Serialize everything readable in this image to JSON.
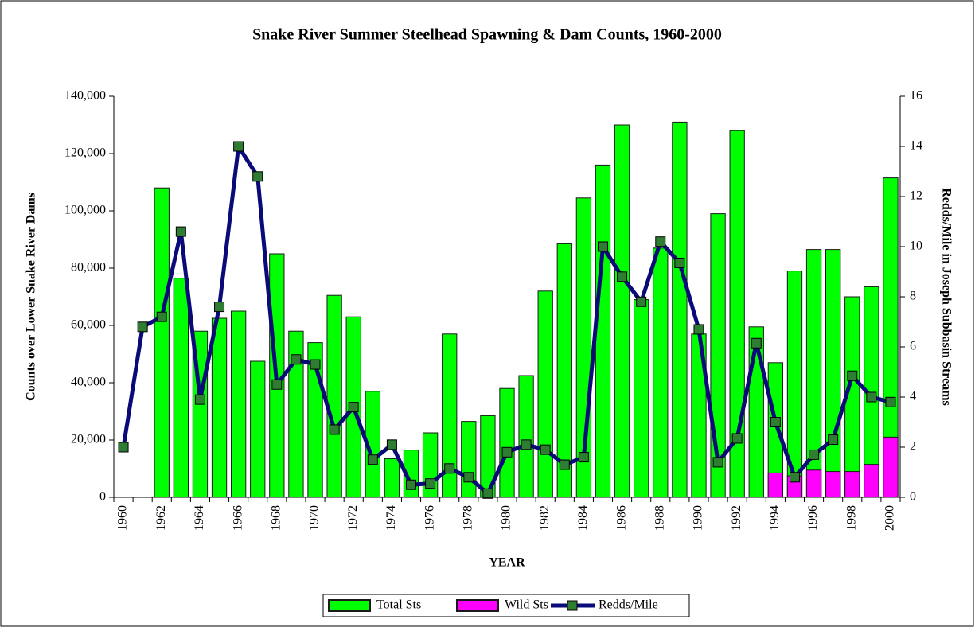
{
  "chart_data": {
    "type": "combo",
    "title": "Snake River Summer Steelhead Spawning & Dam Counts, 1960-2000",
    "x_label": "YEAR",
    "y_label": "Counts over Lower Snake River Dams",
    "y2_label": "Redds/Mile in Joseph Subbasin Streams",
    "categories": [
      "1960",
      null,
      "1962",
      null,
      "1964",
      null,
      "1966",
      null,
      "1968",
      null,
      "1970",
      null,
      "1972",
      null,
      "1974",
      null,
      "1976",
      null,
      "1978",
      null,
      "1980",
      null,
      "1982",
      null,
      "1984",
      null,
      "1986",
      null,
      "1988",
      null,
      "1990",
      null,
      "1992",
      null,
      "1994",
      null,
      "1996",
      null,
      "1998",
      null,
      "2000"
    ],
    "series": [
      {
        "name": "Total Sts",
        "type": "bar",
        "color": "#00ff00",
        "values": [
          null,
          null,
          108000,
          76500,
          58000,
          62500,
          65000,
          47500,
          85000,
          58000,
          54000,
          70500,
          63000,
          37000,
          13500,
          16500,
          22500,
          57000,
          26500,
          28500,
          38000,
          42500,
          72000,
          88500,
          104500,
          116000,
          130000,
          69000,
          87000,
          131000,
          57000,
          99000,
          128000,
          59500,
          47000,
          79000,
          86500,
          86500,
          70000,
          73500,
          111500
        ]
      },
      {
        "name": "Wild Sts",
        "type": "bar",
        "color": "#ff00ff",
        "values": [
          null,
          null,
          null,
          null,
          null,
          null,
          null,
          null,
          null,
          null,
          null,
          null,
          null,
          null,
          null,
          null,
          null,
          null,
          null,
          null,
          null,
          null,
          null,
          null,
          null,
          null,
          null,
          null,
          null,
          null,
          null,
          null,
          null,
          null,
          8500,
          7500,
          9500,
          9000,
          9000,
          11500,
          21000
        ]
      },
      {
        "name": "Redds/Mile",
        "type": "line",
        "color": "#0a0a78",
        "marker_color": "#2e7d32",
        "axis": "y2",
        "values": [
          2.0,
          6.8,
          7.2,
          10.6,
          3.9,
          7.6,
          14.0,
          12.8,
          4.5,
          5.5,
          5.3,
          2.7,
          3.6,
          1.5,
          2.1,
          0.5,
          0.55,
          1.15,
          0.8,
          0.15,
          1.8,
          2.1,
          1.9,
          1.3,
          1.6,
          10.0,
          8.8,
          7.8,
          10.2,
          9.35,
          6.7,
          1.4,
          2.35,
          6.15,
          3.0,
          0.8,
          1.7,
          2.3,
          4.85,
          4.0,
          3.8
        ]
      }
    ],
    "ylim": [
      0,
      140000
    ],
    "yticks": [
      0,
      {
        "value": 20000,
        "label": "20,000"
      },
      {
        "value": 40000,
        "label": "40,000"
      },
      {
        "value": 60000,
        "label": "60,000"
      },
      {
        "value": 80000,
        "label": "80,000"
      },
      {
        "value": 100000,
        "label": "100,000"
      },
      {
        "value": 120000,
        "label": "120,000"
      },
      {
        "value": 140000,
        "label": "140,000"
      }
    ],
    "y2lim": [
      0,
      16
    ],
    "y2ticks": [
      0,
      2,
      4,
      6,
      8,
      10,
      12,
      14,
      16
    ],
    "legend": "bottom"
  }
}
